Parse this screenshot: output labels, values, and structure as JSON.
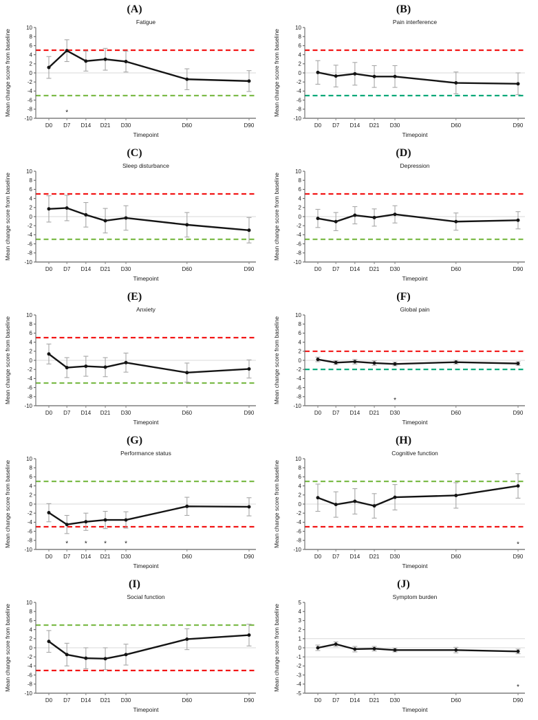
{
  "figure": {
    "y_axis_label": "Mean change score from baseline",
    "x_axis_label": "Timepoint",
    "timepoints": [
      "D0",
      "D7",
      "D14",
      "D21",
      "D30",
      "D60",
      "D90"
    ],
    "significance_marker": "*",
    "colors": {
      "line": "#141414",
      "marker": "#141414",
      "error_bar": "#a6a6a6",
      "red": "#f21414",
      "green_light": "#7cbb49",
      "teal": "#00a878",
      "gridline": "#d9d9d9",
      "axis_y": "#595959",
      "axis_x": "#7f7f7f",
      "text": "#1a1a1a"
    }
  },
  "chart_data": [
    {
      "type": "line",
      "label": "(A)",
      "title": "Fatigue",
      "ylim": [
        -10,
        10
      ],
      "ytick_step": 2,
      "gridlines": [
        0
      ],
      "threshold_lines": [
        {
          "value": 5,
          "color": "red"
        },
        {
          "value": -5,
          "color": "green_light"
        }
      ],
      "means": [
        1.2,
        4.9,
        2.6,
        3.0,
        2.5,
        -1.4,
        -1.8
      ],
      "errors": [
        2.4,
        2.4,
        2.2,
        2.4,
        2.3,
        2.3,
        2.3
      ],
      "asterisks": [
        {
          "timepoint": "D7",
          "y": -8.7
        }
      ]
    },
    {
      "type": "line",
      "label": "(B)",
      "title": "Pain interference",
      "ylim": [
        -10,
        10
      ],
      "ytick_step": 2,
      "gridlines": [
        0
      ],
      "threshold_lines": [
        {
          "value": 5,
          "color": "red"
        },
        {
          "value": -5,
          "color": "teal"
        }
      ],
      "means": [
        0.1,
        -0.7,
        -0.2,
        -0.8,
        -0.8,
        -2.2,
        -2.4
      ],
      "errors": [
        2.6,
        2.4,
        2.5,
        2.4,
        2.4,
        2.4,
        2.4
      ],
      "asterisks": []
    },
    {
      "type": "line",
      "label": "(C)",
      "title": "Sleep disturbance",
      "ylim": [
        -10,
        10
      ],
      "ytick_step": 2,
      "gridlines": [
        0
      ],
      "threshold_lines": [
        {
          "value": 5,
          "color": "red"
        },
        {
          "value": -5,
          "color": "green_light"
        }
      ],
      "means": [
        1.7,
        1.9,
        0.4,
        -0.9,
        -0.3,
        -1.8,
        -3.0
      ],
      "errors": [
        2.9,
        2.8,
        2.7,
        2.7,
        2.7,
        2.7,
        2.8
      ],
      "asterisks": []
    },
    {
      "type": "line",
      "label": "(D)",
      "title": "Depression",
      "ylim": [
        -10,
        10
      ],
      "ytick_step": 2,
      "gridlines": [
        0
      ],
      "threshold_lines": [
        {
          "value": 5,
          "color": "red"
        },
        {
          "value": -5,
          "color": "green_light"
        }
      ],
      "means": [
        -0.4,
        -1.1,
        0.3,
        -0.2,
        0.5,
        -1.1,
        -0.8
      ],
      "errors": [
        2.0,
        2.0,
        1.9,
        1.9,
        1.9,
        1.9,
        1.9
      ],
      "asterisks": []
    },
    {
      "type": "line",
      "label": "(E)",
      "title": "Anxiety",
      "ylim": [
        -10,
        10
      ],
      "ytick_step": 2,
      "gridlines": [
        0
      ],
      "threshold_lines": [
        {
          "value": 5,
          "color": "red"
        },
        {
          "value": -5,
          "color": "green_light"
        }
      ],
      "means": [
        1.4,
        -1.6,
        -1.3,
        -1.5,
        -0.5,
        -2.7,
        -1.9
      ],
      "errors": [
        2.2,
        2.2,
        2.2,
        2.1,
        2.1,
        2.1,
        2.0
      ],
      "asterisks": []
    },
    {
      "type": "line",
      "label": "(F)",
      "title": "Global pain",
      "ylim": [
        -10,
        10
      ],
      "ytick_step": 2,
      "gridlines": [
        0
      ],
      "threshold_lines": [
        {
          "value": 2,
          "color": "red"
        },
        {
          "value": -2,
          "color": "teal"
        }
      ],
      "means": [
        0.2,
        -0.5,
        -0.3,
        -0.6,
        -0.8,
        -0.4,
        -0.7
      ],
      "errors": [
        0.5,
        0.4,
        0.5,
        0.5,
        0.4,
        0.4,
        0.4
      ],
      "asterisks": [
        {
          "timepoint": "D30",
          "y": -8.8
        }
      ]
    },
    {
      "type": "line",
      "label": "(G)",
      "title": "Performance status",
      "ylim": [
        -10,
        10
      ],
      "ytick_step": 2,
      "gridlines": [
        0
      ],
      "threshold_lines": [
        {
          "value": 5,
          "color": "green_light"
        },
        {
          "value": -5,
          "color": "red"
        }
      ],
      "means": [
        -1.9,
        -4.5,
        -3.9,
        -3.5,
        -3.5,
        -0.5,
        -0.6
      ],
      "errors": [
        2.0,
        2.0,
        1.9,
        1.9,
        1.8,
        2.0,
        2.0
      ],
      "asterisks": [
        {
          "timepoint": "D7",
          "y": -8.7
        },
        {
          "timepoint": "D14",
          "y": -8.7
        },
        {
          "timepoint": "D21",
          "y": -8.7
        },
        {
          "timepoint": "D30",
          "y": -8.7
        }
      ]
    },
    {
      "type": "line",
      "label": "(H)",
      "title": "Cognitive function",
      "ylim": [
        -10,
        10
      ],
      "ytick_step": 2,
      "gridlines": [
        0
      ],
      "threshold_lines": [
        {
          "value": 5,
          "color": "green_light"
        },
        {
          "value": -5,
          "color": "red"
        }
      ],
      "means": [
        1.4,
        -0.1,
        0.6,
        -0.4,
        1.5,
        1.9,
        4.0
      ],
      "errors": [
        3.0,
        2.8,
        2.8,
        2.7,
        2.8,
        2.8,
        2.7
      ],
      "asterisks": [
        {
          "timepoint": "D90",
          "y": -8.9
        }
      ]
    },
    {
      "type": "line",
      "label": "(I)",
      "title": "Social function",
      "ylim": [
        -10,
        10
      ],
      "ytick_step": 2,
      "gridlines": [
        0
      ],
      "threshold_lines": [
        {
          "value": 5,
          "color": "green_light"
        },
        {
          "value": -5,
          "color": "red"
        }
      ],
      "means": [
        1.4,
        -1.5,
        -2.3,
        -2.4,
        -1.5,
        1.9,
        2.8
      ],
      "errors": [
        2.4,
        2.5,
        2.3,
        2.4,
        2.3,
        2.3,
        2.4
      ],
      "asterisks": []
    },
    {
      "type": "line",
      "label": "(J)",
      "title": "Symptom burden",
      "ylim": [
        -5,
        5
      ],
      "ytick_step": 1,
      "gridlines": [
        1,
        0,
        -1
      ],
      "threshold_lines": [],
      "means": [
        0.0,
        0.4,
        -0.15,
        -0.1,
        -0.25,
        -0.25,
        -0.4
      ],
      "errors": [
        0.3,
        0.25,
        0.3,
        0.25,
        0.2,
        0.3,
        0.25
      ],
      "asterisks": [
        {
          "timepoint": "D90",
          "y": -4.3
        }
      ]
    }
  ]
}
